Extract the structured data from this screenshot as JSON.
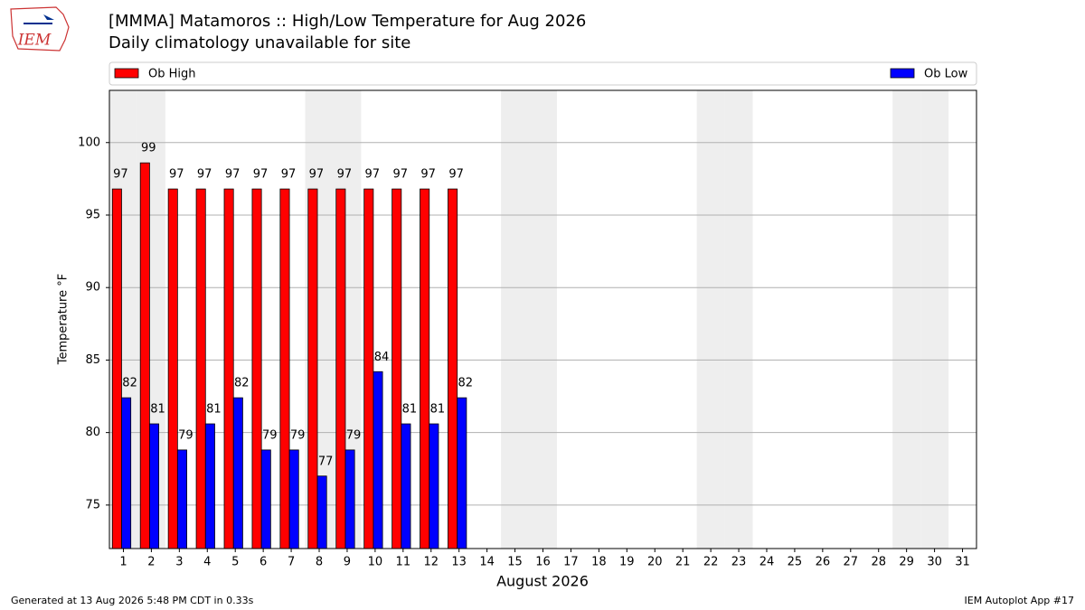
{
  "chart_data": {
    "type": "bar",
    "logo": "IEM",
    "title": "[MMMA] Matamoros :: High/Low Temperature for Aug 2026",
    "subtitle": "Daily climatology unavailable for site",
    "x_label": "August 2026",
    "y_label": "Temperature °F",
    "categories": [
      "1",
      "2",
      "3",
      "4",
      "5",
      "6",
      "7",
      "8",
      "9",
      "10",
      "11",
      "12",
      "13",
      "14",
      "15",
      "16",
      "17",
      "18",
      "19",
      "20",
      "21",
      "22",
      "23",
      "24",
      "25",
      "26",
      "27",
      "28",
      "29",
      "30",
      "31"
    ],
    "shaded_days": [
      "1",
      "2",
      "8",
      "9",
      "15",
      "16",
      "22",
      "23",
      "29",
      "30"
    ],
    "series": [
      {
        "name": "Ob High",
        "color": "#ff0000",
        "values": [
          96.8,
          98.6,
          96.8,
          96.8,
          96.8,
          96.8,
          96.8,
          96.8,
          96.8,
          96.8,
          96.8,
          96.8,
          96.8,
          null,
          null,
          null,
          null,
          null,
          null,
          null,
          null,
          null,
          null,
          null,
          null,
          null,
          null,
          null,
          null,
          null,
          null
        ],
        "value_labels": [
          "97",
          "99",
          "97",
          "97",
          "97",
          "97",
          "97",
          "97",
          "97",
          "97",
          "97",
          "97",
          "97",
          null,
          null,
          null,
          null,
          null,
          null,
          null,
          null,
          null,
          null,
          null,
          null,
          null,
          null,
          null,
          null,
          null,
          null
        ]
      },
      {
        "name": "Ob Low",
        "color": "#0000ff",
        "values": [
          82.4,
          80.6,
          78.8,
          80.6,
          82.4,
          78.8,
          78.8,
          77.0,
          78.8,
          84.2,
          80.6,
          80.6,
          82.4,
          null,
          null,
          null,
          null,
          null,
          null,
          null,
          null,
          null,
          null,
          null,
          null,
          null,
          null,
          null,
          null,
          null,
          null
        ],
        "value_labels": [
          "82",
          "81",
          "79",
          "81",
          "82",
          "79",
          "79",
          "77",
          "79",
          "84",
          "81",
          "81",
          "82",
          null,
          null,
          null,
          null,
          null,
          null,
          null,
          null,
          null,
          null,
          null,
          null,
          null,
          null,
          null,
          null,
          null,
          null
        ]
      }
    ],
    "ylim": [
      72,
      103.6
    ],
    "yticks": [
      75,
      80,
      85,
      90,
      95,
      100
    ],
    "grid": true,
    "footer_left": "Generated at 13 Aug 2026 5:48 PM CDT in 0.33s",
    "footer_right": "IEM Autoplot App #17"
  }
}
